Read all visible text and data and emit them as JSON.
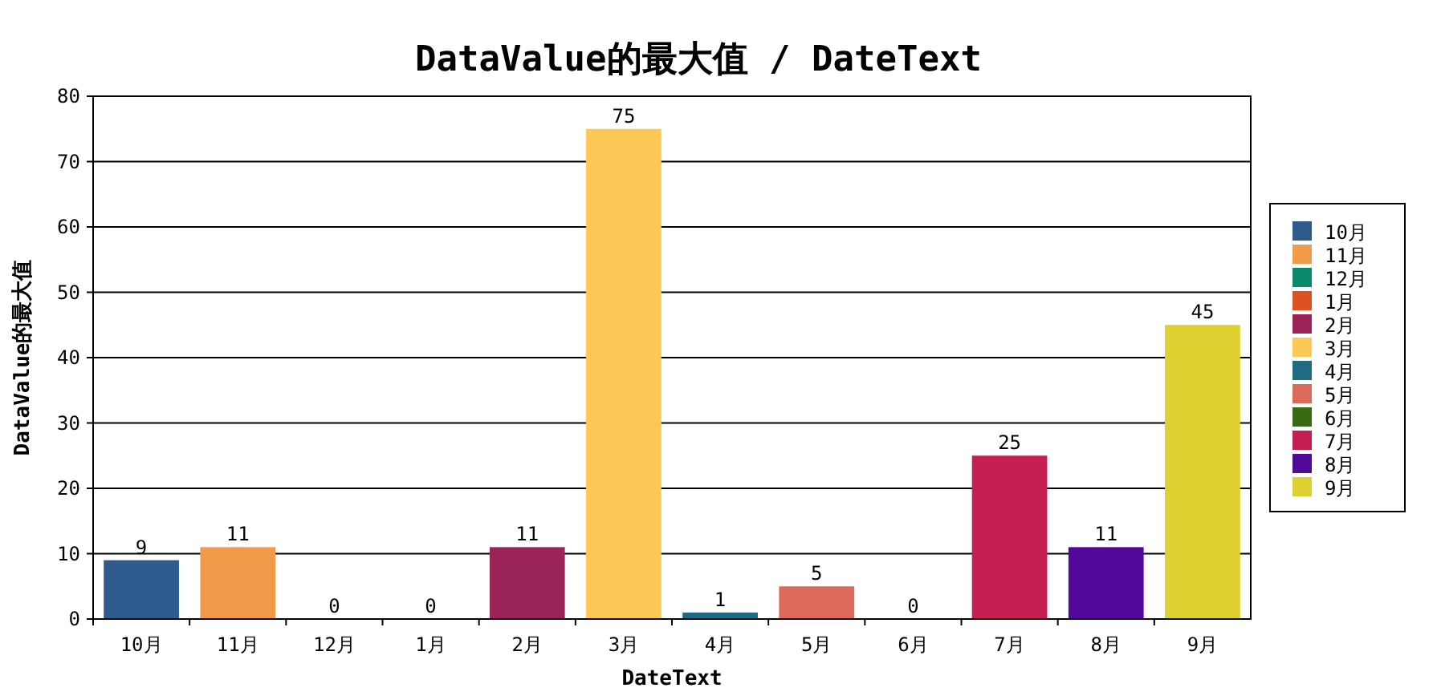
{
  "chart_data": {
    "type": "bar",
    "title": "DataValue的最大值 / DateText",
    "xlabel": "DateText",
    "ylabel": "DataValue的最大值",
    "categories": [
      "10月",
      "11月",
      "12月",
      "1月",
      "2月",
      "3月",
      "4月",
      "5月",
      "6月",
      "7月",
      "8月",
      "9月"
    ],
    "series": [
      {
        "name": "10月",
        "color": "#2e5a8e",
        "values": [
          9,
          null,
          null,
          null,
          null,
          null,
          null,
          null,
          null,
          null,
          null,
          null
        ]
      },
      {
        "name": "11月",
        "color": "#f09a4a",
        "values": [
          null,
          11,
          null,
          null,
          null,
          null,
          null,
          null,
          null,
          null,
          null,
          null
        ]
      },
      {
        "name": "12月",
        "color": "#0a8a6a",
        "values": [
          null,
          null,
          0,
          null,
          null,
          null,
          null,
          null,
          null,
          null,
          null,
          null
        ]
      },
      {
        "name": "1月",
        "color": "#dc5220",
        "values": [
          null,
          null,
          null,
          0,
          null,
          null,
          null,
          null,
          null,
          null,
          null,
          null
        ]
      },
      {
        "name": "2月",
        "color": "#9a2358",
        "values": [
          null,
          null,
          null,
          null,
          11,
          null,
          null,
          null,
          null,
          null,
          null,
          null
        ]
      },
      {
        "name": "3月",
        "color": "#fdc856",
        "values": [
          null,
          null,
          null,
          null,
          null,
          75,
          null,
          null,
          null,
          null,
          null,
          null
        ]
      },
      {
        "name": "4月",
        "color": "#1f6b83",
        "values": [
          null,
          null,
          null,
          null,
          null,
          null,
          1,
          null,
          null,
          null,
          null,
          null
        ]
      },
      {
        "name": "5月",
        "color": "#dc6a5a",
        "values": [
          null,
          null,
          null,
          null,
          null,
          null,
          null,
          5,
          null,
          null,
          null,
          null
        ]
      },
      {
        "name": "6月",
        "color": "#3a6a14",
        "values": [
          null,
          null,
          null,
          null,
          null,
          null,
          null,
          null,
          0,
          null,
          null,
          null
        ]
      },
      {
        "name": "7月",
        "color": "#c41f50",
        "values": [
          null,
          null,
          null,
          null,
          null,
          null,
          null,
          null,
          null,
          25,
          null,
          null
        ]
      },
      {
        "name": "8月",
        "color": "#520898",
        "values": [
          null,
          null,
          null,
          null,
          null,
          null,
          null,
          null,
          null,
          null,
          11,
          null
        ]
      },
      {
        "name": "9月",
        "color": "#ddd030",
        "values": [
          null,
          null,
          null,
          null,
          null,
          null,
          null,
          null,
          null,
          null,
          null,
          45
        ]
      }
    ],
    "stacked": true,
    "ylim": [
      0,
      80
    ],
    "yticks": [
      0,
      10,
      20,
      30,
      40,
      50,
      60,
      70,
      80
    ],
    "grid": "y",
    "data_labels": true,
    "legend": "right"
  }
}
